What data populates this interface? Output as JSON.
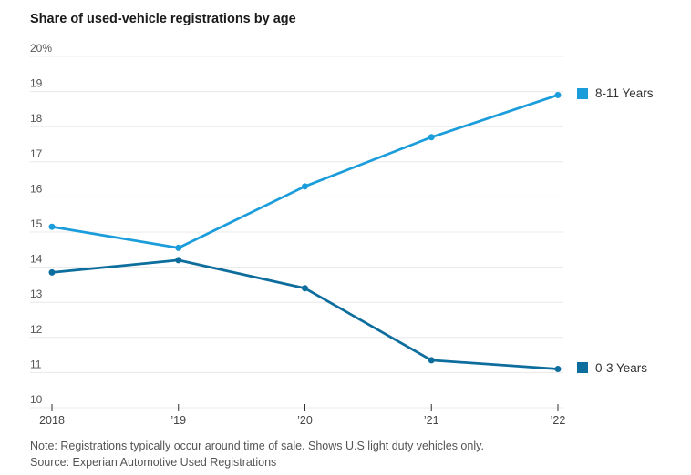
{
  "page": {
    "title": "Share of used-vehicle registrations by age",
    "note": "Note: Registrations typically occur around time of sale. Shows U.S light duty vehicles only.",
    "source": "Source: Experian Automotive Used Registrations"
  },
  "chart_data": {
    "type": "line",
    "title": "Share of used-vehicle registrations by age",
    "categories": [
      "2018",
      "’19",
      "’20",
      "’21",
      "’22"
    ],
    "series": [
      {
        "name": "8-11 Years",
        "color": "#1b9ddb",
        "values": [
          15.15,
          14.55,
          16.3,
          17.7,
          18.9
        ]
      },
      {
        "name": "0-3 Years",
        "color": "#0d6d9d",
        "values": [
          13.85,
          14.2,
          13.4,
          11.35,
          11.1
        ]
      }
    ],
    "ylim": [
      10,
      20
    ],
    "yticks": [
      10,
      11,
      12,
      13,
      14,
      15,
      16,
      17,
      18,
      19,
      20
    ],
    "ytick_top_label": "20%",
    "xlabel": "",
    "ylabel": "",
    "grid": "horizontal",
    "legend_position": "right, aligned with final data point of each line",
    "styles": {
      "gridline_color": "#e8e8e8",
      "axis_tick_color": "#333333",
      "ytick_label_color": "#555555",
      "xtick_label_color": "#444444",
      "marker": "filled circle at each data point"
    }
  }
}
